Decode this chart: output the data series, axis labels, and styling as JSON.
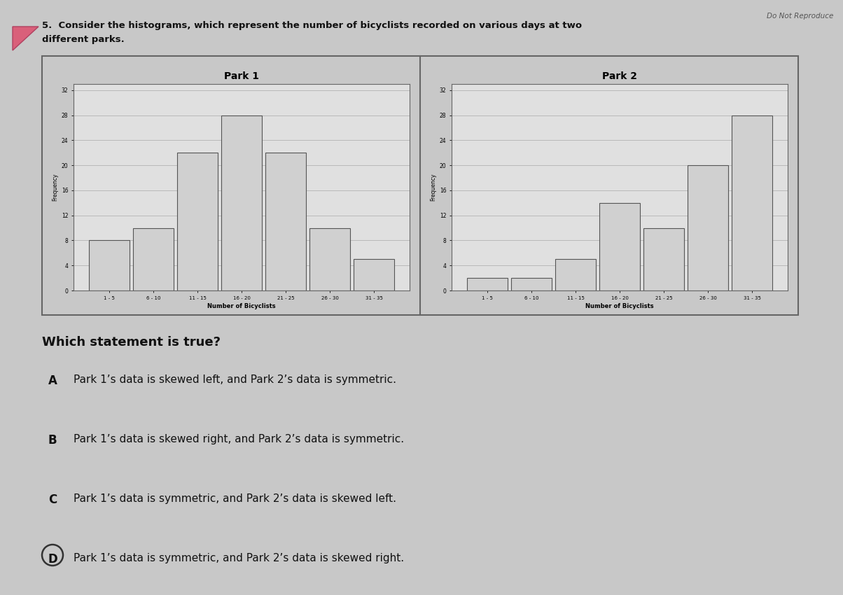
{
  "title_line1": "5.  Consider the histograms, which represent the number of bicyclists recorded on various days at two",
  "title_line2": "different parks.",
  "top_right_text": "Do Not Reproduce",
  "park1_title": "Park 1",
  "park2_title": "Park 2",
  "park1_bins": [
    "1 - 5",
    "6 - 10",
    "11 - 15",
    "16 - 20",
    "21 - 25",
    "26 - 30",
    "31 - 35"
  ],
  "park1_values": [
    8,
    10,
    22,
    28,
    22,
    10,
    5
  ],
  "park1_xlabel": "Number of Bicyclists",
  "park1_ylabel": "Frequency",
  "park1_yticks": [
    0,
    4,
    8,
    12,
    16,
    20,
    24,
    28,
    32
  ],
  "park1_ylim": [
    0,
    33
  ],
  "park2_bins": [
    "1 - 5",
    "6 - 10",
    "11 - 15",
    "16 - 20",
    "21 - 25",
    "26 - 30",
    "31 - 35"
  ],
  "park2_values": [
    2,
    2,
    5,
    14,
    10,
    20,
    28
  ],
  "park2_xlabel": "Number of Bicyclists",
  "park2_ylabel": "Frequency",
  "park2_yticks": [
    0,
    4,
    8,
    12,
    16,
    20,
    24,
    28,
    32
  ],
  "park2_ylim": [
    0,
    33
  ],
  "question": "Which statement is true?",
  "options": [
    {
      "letter": "A",
      "text": "Park 1’s data is skewed left, and Park 2’s data is symmetric."
    },
    {
      "letter": "B",
      "text": "Park 1’s data is skewed right, and Park 2’s data is symmetric."
    },
    {
      "letter": "C",
      "text": "Park 1’s data is symmetric, and Park 2’s data is skewed left."
    },
    {
      "letter": "D",
      "text": "Park 1’s data is symmetric, and Park 2’s data is skewed right."
    }
  ],
  "answer_circle": "D",
  "bg_color": "#c8c8c8",
  "chart_area_bg": "#d0d0d0",
  "inner_chart_bg": "#e0e0e0",
  "bar_color": "#d0d0d0",
  "bar_edgecolor": "#555555",
  "grid_color": "#aaaaaa",
  "text_color": "#111111"
}
